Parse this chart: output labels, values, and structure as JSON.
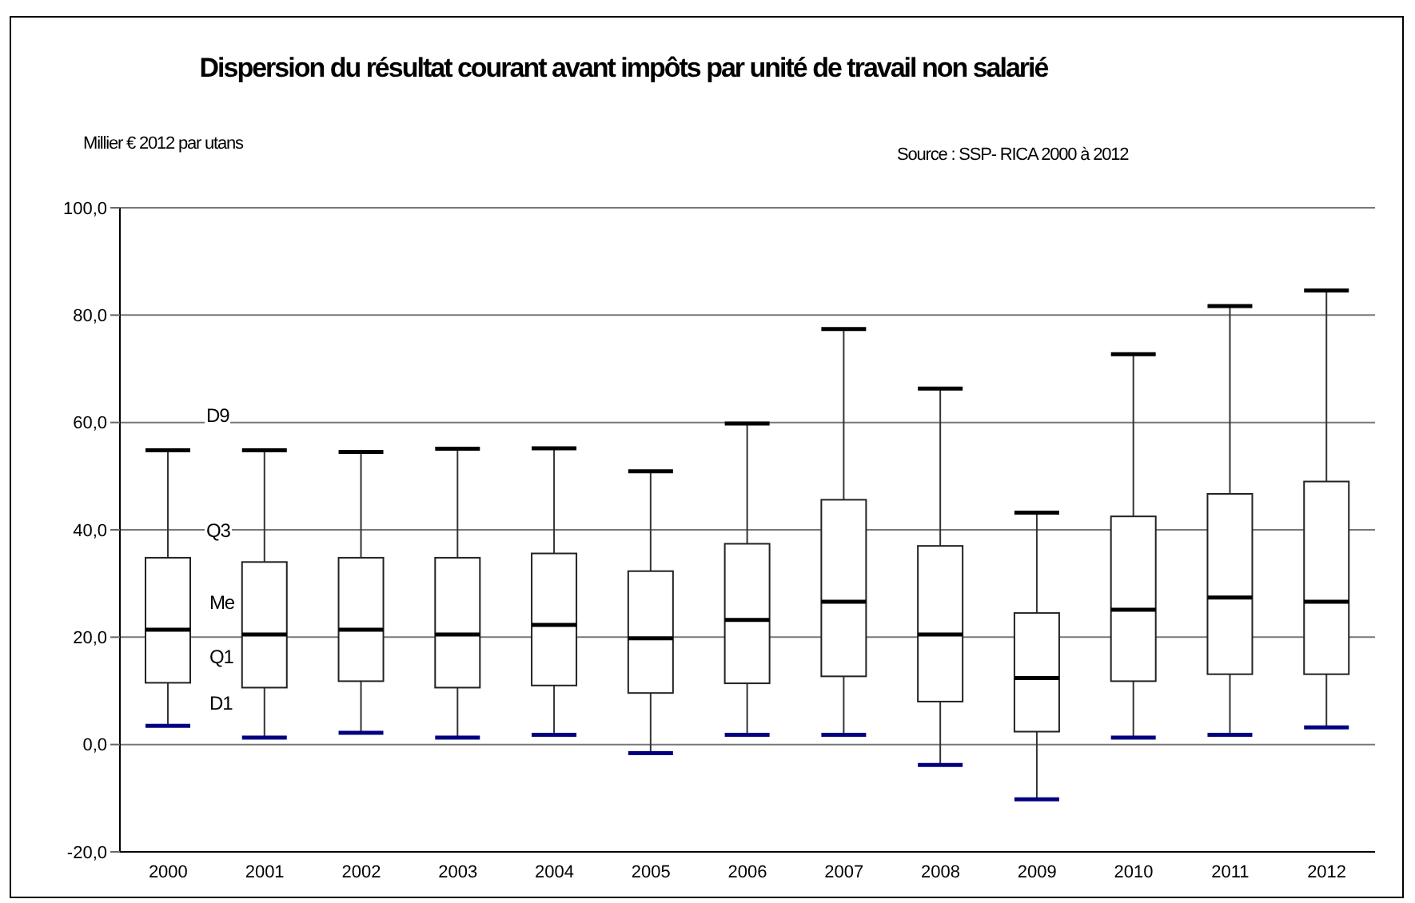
{
  "chart_data": {
    "type": "box",
    "title": "Dispersion du résultat courant avant impôts par unité de travail non salarié",
    "ylabel": "Millier € 2012 par utans",
    "annotations": [
      "Source : SSP-  RICA 2000 à 2012",
      "D9",
      "Q3",
      "Me",
      "Q1",
      "D1"
    ],
    "categories": [
      "2000",
      "2001",
      "2002",
      "2003",
      "2004",
      "2005",
      "2006",
      "2007",
      "2008",
      "2009",
      "2010",
      "2011",
      "2012"
    ],
    "boxes": [
      {
        "low": 3.5,
        "q1": 11.5,
        "median": 21.4,
        "q3": 34.8,
        "high": 54.8
      },
      {
        "low": 1.3,
        "q1": 10.6,
        "median": 20.5,
        "q3": 34,
        "high": 54.8
      },
      {
        "low": 2.2,
        "q1": 11.8,
        "median": 21.4,
        "q3": 34.8,
        "high": 54.5
      },
      {
        "low": 1.3,
        "q1": 10.6,
        "median": 20.5,
        "q3": 34.8,
        "high": 55.1
      },
      {
        "low": 1.8,
        "q1": 11,
        "median": 22.3,
        "q3": 35.6,
        "high": 55.2
      },
      {
        "low": -1.6,
        "q1": 9.6,
        "median": 19.8,
        "q3": 32.3,
        "high": 50.9
      },
      {
        "low": 1.8,
        "q1": 11.4,
        "median": 23.2,
        "q3": 37.4,
        "high": 59.8
      },
      {
        "low": 1.8,
        "q1": 12.7,
        "median": 26.6,
        "q3": 45.6,
        "high": 77.4
      },
      {
        "low": -3.8,
        "q1": 8,
        "median": 20.5,
        "q3": 37,
        "high": 66.3
      },
      {
        "low": -10.2,
        "q1": 2.4,
        "median": 12.4,
        "q3": 24.5,
        "high": 43.2
      },
      {
        "low": 1.3,
        "q1": 11.8,
        "median": 25.1,
        "q3": 42.5,
        "high": 72.7
      },
      {
        "low": 1.8,
        "q1": 13.1,
        "median": 27.4,
        "q3": 46.7,
        "high": 81.7
      },
      {
        "low": 3.2,
        "q1": 13.1,
        "median": 26.6,
        "q3": 49,
        "high": 84.6
      }
    ],
    "ylim": [
      -20,
      100
    ],
    "yticks": [
      {
        "value": -20,
        "label": "-20,0"
      },
      {
        "value": 0,
        "label": "0,0"
      },
      {
        "value": 20,
        "label": "20,0"
      },
      {
        "value": 40,
        "label": "40,0"
      },
      {
        "value": 60,
        "label": "60,0"
      },
      {
        "value": 80,
        "label": "80,0"
      },
      {
        "value": 100,
        "label": "100,0"
      }
    ],
    "grid": "y"
  }
}
